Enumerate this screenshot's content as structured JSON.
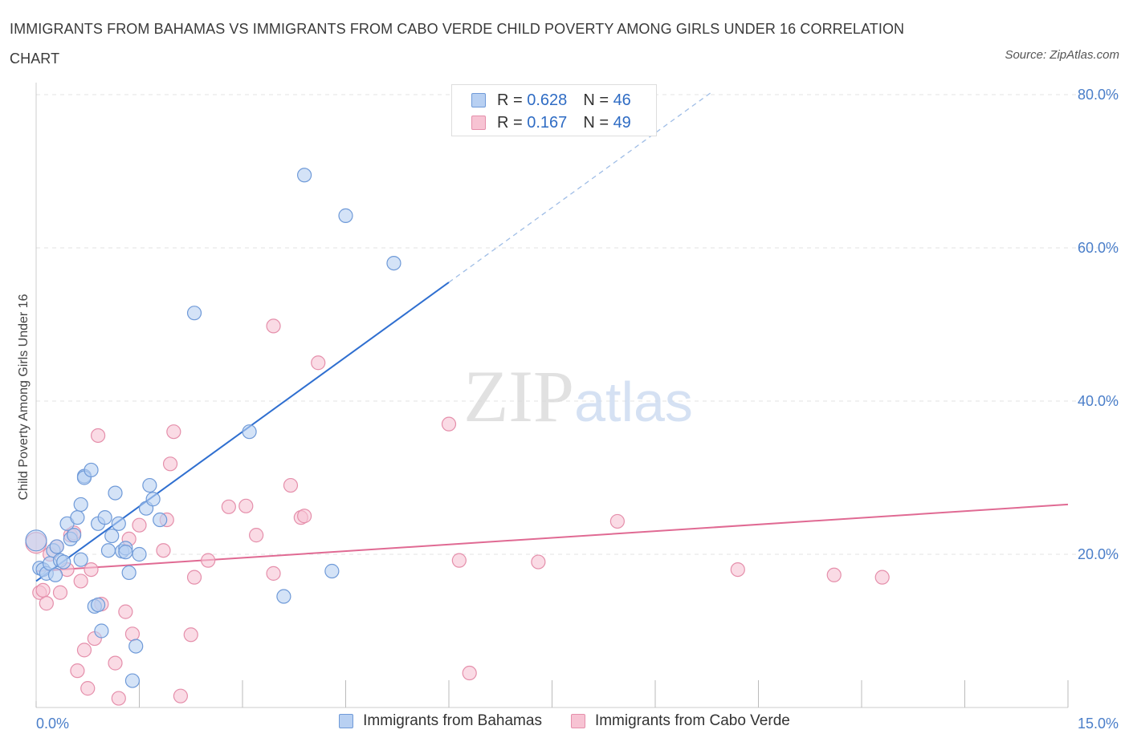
{
  "title": "IMMIGRANTS FROM BAHAMAS VS IMMIGRANTS FROM CABO VERDE CHILD POVERTY AMONG GIRLS UNDER 16 CORRELATION CHART",
  "source": "Source: ZipAtlas.com",
  "legend": {
    "rows": [
      {
        "r_label": "R = ",
        "r_value": "0.628",
        "n_label": "N = ",
        "n_value": "46"
      },
      {
        "r_label": "R = ",
        "r_value": "0.167",
        "n_label": "N = ",
        "n_value": "49"
      }
    ]
  },
  "colors": {
    "bahamas_fill": "#b8d0f2",
    "bahamas_stroke": "#6f9ad8",
    "bahamas_line": "#2f6fd0",
    "caboverde_fill": "#f7c3d3",
    "caboverde_stroke": "#e58fab",
    "caboverde_line": "#e06a93",
    "grid": "#e3e3e3",
    "axis_text": "#4a7ec9"
  },
  "chart_data": {
    "type": "scatter",
    "title": "IMMIGRANTS FROM BAHAMAS VS IMMIGRANTS FROM CABO VERDE CHILD POVERTY AMONG GIRLS UNDER 16 CORRELATION CHART",
    "xlabel": "",
    "ylabel": "Child Poverty Among Girls Under 16",
    "xlim": [
      0,
      15
    ],
    "ylim": [
      0,
      80
    ],
    "x_tick_labels": [
      "0.0%",
      "15.0%"
    ],
    "y_tick_labels": [
      "20.0%",
      "40.0%",
      "60.0%",
      "80.0%"
    ],
    "y_ticks": [
      20,
      40,
      60,
      80
    ],
    "grid": true,
    "legend_position": "top-center",
    "series": [
      {
        "name": "Immigrants from Bahamas",
        "r": 0.628,
        "n": 46,
        "trend": {
          "x0": 0,
          "y0": 16.5,
          "x1": 6,
          "y1": 55.5,
          "dashed_to_x": 9.8
        },
        "points": [
          [
            0.05,
            18.2
          ],
          [
            0.1,
            18.0
          ],
          [
            0.15,
            17.5
          ],
          [
            0.2,
            18.8
          ],
          [
            0.25,
            20.5
          ],
          [
            0.3,
            21.0
          ],
          [
            0.28,
            17.3
          ],
          [
            0.35,
            19.2
          ],
          [
            0.4,
            19.0
          ],
          [
            0.45,
            24.0
          ],
          [
            0.5,
            22.0
          ],
          [
            0.55,
            22.5
          ],
          [
            0.6,
            24.8
          ],
          [
            0.65,
            19.3
          ],
          [
            0.7,
            30.2
          ],
          [
            0.65,
            26.5
          ],
          [
            0.7,
            30.0
          ],
          [
            0.8,
            31.0
          ],
          [
            0.85,
            13.2
          ],
          [
            0.9,
            13.4
          ],
          [
            0.95,
            10.0
          ],
          [
            0.9,
            24.0
          ],
          [
            1.0,
            24.8
          ],
          [
            1.05,
            20.5
          ],
          [
            1.1,
            22.4
          ],
          [
            1.15,
            28.0
          ],
          [
            1.2,
            24.0
          ],
          [
            1.25,
            20.4
          ],
          [
            1.3,
            20.8
          ],
          [
            1.3,
            20.3
          ],
          [
            1.35,
            17.6
          ],
          [
            1.45,
            8.0
          ],
          [
            1.4,
            3.5
          ],
          [
            1.5,
            20.0
          ],
          [
            1.6,
            26.0
          ],
          [
            1.65,
            29.0
          ],
          [
            1.7,
            27.2
          ],
          [
            1.8,
            24.5
          ],
          [
            2.3,
            51.5
          ],
          [
            3.1,
            36.0
          ],
          [
            3.6,
            14.5
          ],
          [
            3.9,
            69.5
          ],
          [
            4.3,
            17.8
          ],
          [
            4.5,
            64.2
          ],
          [
            5.2,
            58.0
          ],
          [
            0.0,
            21.8
          ]
        ]
      },
      {
        "name": "Immigrants from Cabo Verde",
        "r": 0.167,
        "n": 49,
        "trend": {
          "x0": 0,
          "y0": 17.8,
          "x1": 15,
          "y1": 26.5
        },
        "points": [
          [
            0.05,
            15.0
          ],
          [
            0.1,
            15.3
          ],
          [
            0.15,
            13.6
          ],
          [
            0.2,
            20.0
          ],
          [
            0.3,
            21.0
          ],
          [
            0.35,
            15.0
          ],
          [
            0.45,
            18.0
          ],
          [
            0.5,
            22.5
          ],
          [
            0.55,
            22.8
          ],
          [
            0.6,
            4.8
          ],
          [
            0.65,
            16.5
          ],
          [
            0.7,
            7.5
          ],
          [
            0.75,
            2.5
          ],
          [
            0.8,
            18.0
          ],
          [
            0.85,
            9.0
          ],
          [
            0.9,
            35.5
          ],
          [
            0.95,
            13.5
          ],
          [
            1.15,
            5.8
          ],
          [
            1.2,
            1.2
          ],
          [
            1.3,
            12.5
          ],
          [
            1.35,
            22.0
          ],
          [
            1.4,
            9.6
          ],
          [
            1.5,
            23.8
          ],
          [
            1.85,
            20.5
          ],
          [
            1.9,
            24.5
          ],
          [
            1.95,
            31.8
          ],
          [
            2.0,
            36.0
          ],
          [
            2.1,
            1.5
          ],
          [
            2.25,
            9.5
          ],
          [
            2.3,
            17.0
          ],
          [
            2.5,
            19.2
          ],
          [
            2.8,
            26.2
          ],
          [
            3.05,
            26.3
          ],
          [
            3.2,
            22.5
          ],
          [
            3.45,
            17.5
          ],
          [
            3.45,
            49.8
          ],
          [
            3.7,
            29.0
          ],
          [
            3.85,
            24.8
          ],
          [
            3.9,
            25.0
          ],
          [
            4.1,
            45.0
          ],
          [
            6.0,
            37.0
          ],
          [
            6.15,
            19.2
          ],
          [
            6.3,
            4.5
          ],
          [
            7.3,
            19.0
          ],
          [
            8.45,
            24.3
          ],
          [
            10.2,
            18.0
          ],
          [
            11.6,
            17.3
          ],
          [
            12.3,
            17.0
          ],
          [
            0.0,
            21.5
          ]
        ]
      }
    ]
  }
}
